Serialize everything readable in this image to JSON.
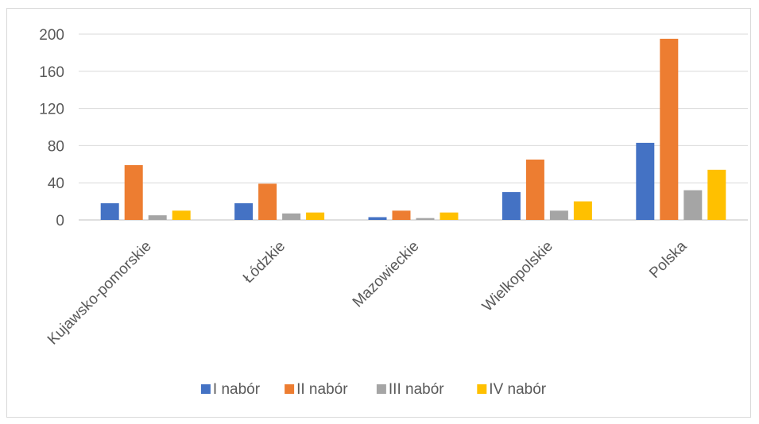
{
  "chart_data": {
    "type": "bar",
    "categories": [
      "Kujawsko-pomorskie",
      "Łódzkie",
      "Mazowieckie",
      "Wielkopolskie",
      "Polska"
    ],
    "series": [
      {
        "name": "I nabór",
        "color": "#4472c4",
        "values": [
          18,
          18,
          3,
          30,
          83
        ]
      },
      {
        "name": "II nabór",
        "color": "#ed7d31",
        "values": [
          59,
          39,
          10,
          65,
          195
        ]
      },
      {
        "name": "III nabór",
        "color": "#a5a5a5",
        "values": [
          5,
          7,
          2,
          10,
          32
        ]
      },
      {
        "name": "IV nabór",
        "color": "#ffc000",
        "values": [
          10,
          8,
          8,
          20,
          54
        ]
      }
    ],
    "yticks": [
      0,
      40,
      80,
      120,
      160,
      200
    ],
    "ylim": [
      0,
      200
    ],
    "grid": true,
    "legend_position": "bottom",
    "title": "",
    "xlabel": "",
    "ylabel": ""
  }
}
